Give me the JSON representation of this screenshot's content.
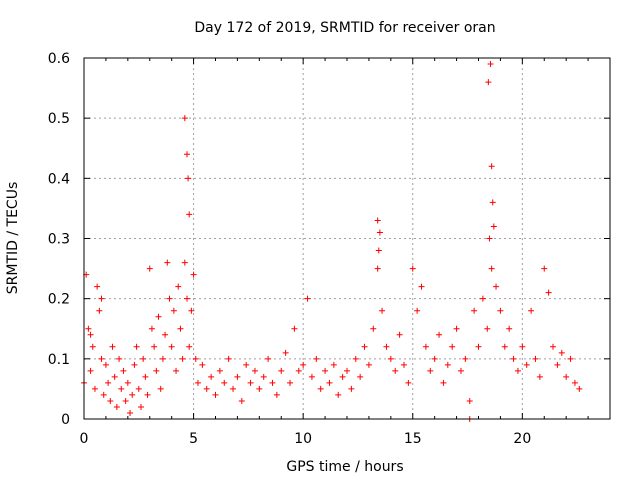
{
  "chart_data": {
    "type": "scatter",
    "title": "Day 172 of 2019, SRMTID for receiver oran",
    "xlabel": "GPS time / hours",
    "ylabel": "SRMTID / TECUs",
    "xlim": [
      0,
      24
    ],
    "ylim": [
      0,
      0.6
    ],
    "x_ticks": [
      0,
      5,
      10,
      15,
      20
    ],
    "x_tick_labels": [
      "0",
      "5",
      "10",
      "15",
      "20"
    ],
    "y_ticks": [
      0,
      0.1,
      0.2,
      0.3,
      0.4,
      0.5,
      0.6
    ],
    "y_tick_labels": [
      "0",
      "0.1",
      "0.2",
      "0.3",
      "0.4",
      "0.5",
      "0.6"
    ],
    "grid": true,
    "marker": "+",
    "series": [
      {
        "name": "SRMTID",
        "color": "#ff0000",
        "x": [
          0.0,
          0.1,
          0.2,
          0.3,
          0.4,
          0.5,
          0.6,
          0.7,
          0.8,
          0.9,
          1.0,
          1.1,
          1.2,
          1.3,
          1.4,
          1.5,
          1.6,
          1.7,
          1.8,
          1.9,
          2.0,
          2.1,
          2.2,
          2.3,
          2.4,
          2.5,
          2.6,
          2.7,
          2.8,
          2.9,
          3.0,
          3.1,
          3.2,
          3.3,
          3.4,
          3.5,
          3.6,
          3.7,
          3.8,
          3.9,
          4.0,
          4.1,
          4.2,
          4.3,
          4.4,
          4.5,
          4.6,
          4.7,
          4.8,
          4.9,
          5.0,
          5.1,
          5.2,
          5.4,
          5.6,
          5.8,
          6.0,
          6.2,
          6.4,
          6.6,
          6.8,
          7.0,
          7.2,
          7.4,
          7.6,
          7.8,
          8.0,
          8.2,
          8.4,
          8.6,
          8.8,
          9.0,
          9.2,
          9.4,
          9.6,
          9.8,
          10.0,
          10.2,
          10.4,
          10.6,
          10.8,
          11.0,
          11.2,
          11.4,
          11.6,
          11.8,
          12.0,
          12.2,
          12.4,
          12.6,
          12.8,
          13.0,
          13.2,
          13.4,
          13.5,
          13.6,
          13.8,
          14.0,
          14.2,
          14.4,
          14.6,
          14.8,
          15.0,
          15.2,
          15.4,
          15.6,
          15.8,
          16.0,
          16.2,
          16.4,
          16.6,
          16.8,
          17.0,
          17.2,
          17.4,
          17.6,
          17.8,
          18.0,
          18.2,
          18.4,
          18.5,
          18.6,
          18.7,
          18.8,
          19.0,
          19.2,
          19.4,
          19.6,
          19.8,
          20.0,
          20.2,
          20.4,
          20.6,
          20.8,
          21.0,
          21.2,
          21.4,
          21.6,
          21.8,
          22.0,
          22.2,
          22.4,
          22.6,
          0.3,
          0.8,
          4.6,
          4.7,
          4.75,
          4.8,
          13.4,
          13.45,
          18.45,
          18.55,
          18.6,
          18.65,
          17.6
        ],
        "y": [
          0.06,
          0.24,
          0.15,
          0.08,
          0.12,
          0.05,
          0.22,
          0.18,
          0.1,
          0.04,
          0.09,
          0.06,
          0.03,
          0.12,
          0.07,
          0.02,
          0.1,
          0.05,
          0.08,
          0.03,
          0.06,
          0.01,
          0.04,
          0.09,
          0.12,
          0.05,
          0.02,
          0.1,
          0.07,
          0.04,
          0.25,
          0.15,
          0.12,
          0.08,
          0.17,
          0.05,
          0.1,
          0.14,
          0.26,
          0.2,
          0.12,
          0.18,
          0.08,
          0.22,
          0.15,
          0.1,
          0.26,
          0.2,
          0.12,
          0.18,
          0.24,
          0.1,
          0.06,
          0.09,
          0.05,
          0.07,
          0.04,
          0.08,
          0.06,
          0.1,
          0.05,
          0.07,
          0.03,
          0.09,
          0.06,
          0.08,
          0.05,
          0.07,
          0.1,
          0.06,
          0.04,
          0.08,
          0.11,
          0.06,
          0.15,
          0.08,
          0.09,
          0.2,
          0.07,
          0.1,
          0.05,
          0.08,
          0.06,
          0.09,
          0.04,
          0.07,
          0.08,
          0.05,
          0.1,
          0.07,
          0.12,
          0.09,
          0.15,
          0.25,
          0.31,
          0.18,
          0.12,
          0.1,
          0.08,
          0.14,
          0.09,
          0.06,
          0.25,
          0.18,
          0.22,
          0.12,
          0.08,
          0.1,
          0.14,
          0.06,
          0.09,
          0.12,
          0.15,
          0.08,
          0.1,
          0.03,
          0.18,
          0.12,
          0.2,
          0.15,
          0.3,
          0.25,
          0.32,
          0.22,
          0.18,
          0.12,
          0.15,
          0.1,
          0.08,
          0.12,
          0.09,
          0.18,
          0.1,
          0.07,
          0.25,
          0.21,
          0.12,
          0.09,
          0.11,
          0.07,
          0.1,
          0.06,
          0.05,
          0.14,
          0.2,
          0.5,
          0.44,
          0.4,
          0.34,
          0.33,
          0.28,
          0.56,
          0.59,
          0.42,
          0.36,
          0.0
        ]
      }
    ]
  }
}
